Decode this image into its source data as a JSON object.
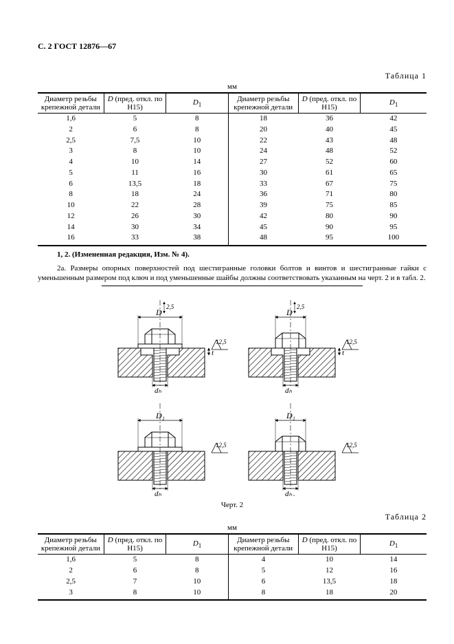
{
  "header": "С. 2 ГОСТ 12876—67",
  "table1": {
    "caption": "Таблица 1",
    "unit": "мм",
    "columns": [
      "Диаметр резьбы крепежной детали",
      "D (пред. откл. по Н15)",
      "D₁",
      "Диаметр резьбы крепежной детали",
      "D (пред. откл. по Н15)",
      "D₁"
    ],
    "rows": [
      [
        "1,6",
        "5",
        "8",
        "18",
        "36",
        "42"
      ],
      [
        "2",
        "6",
        "8",
        "20",
        "40",
        "45"
      ],
      [
        "2,5",
        "7,5",
        "10",
        "22",
        "43",
        "48"
      ],
      [
        "3",
        "8",
        "10",
        "24",
        "48",
        "52"
      ],
      [
        "4",
        "10",
        "14",
        "27",
        "52",
        "60"
      ],
      [
        "5",
        "11",
        "16",
        "30",
        "61",
        "65"
      ],
      [
        "6",
        "13,5",
        "18",
        "33",
        "67",
        "75"
      ],
      [
        "8",
        "18",
        "24",
        "36",
        "71",
        "80"
      ],
      [
        "10",
        "22",
        "28",
        "39",
        "75",
        "85"
      ],
      [
        "12",
        "26",
        "30",
        "42",
        "80",
        "90"
      ],
      [
        "14",
        "30",
        "34",
        "45",
        "90",
        "95"
      ],
      [
        "16",
        "33",
        "38",
        "48",
        "95",
        "100"
      ]
    ]
  },
  "para12": "1, 2. (Измененная редакция, Изм. № 4).",
  "para2a": "2а. Размеры опорных поверхностей под шестигранные головки болтов и винтов и шестигранные гайки с уменьшенным размером под ключ и под уменьшенные шайбы должны соответствовать указанным на черт. 2 и в табл. 2.",
  "figure": {
    "caption": "Черт. 2",
    "labels": {
      "D": "D",
      "D1": "D₁",
      "dh": "dₕ",
      "dh2": "dₕ₂",
      "surf": "12,5",
      "t": "t",
      "tol": "2,5"
    },
    "hatch_color": "#000000",
    "line_color": "#000000",
    "bg": "#ffffff",
    "stroke_width": 1
  },
  "table2": {
    "caption": "Таблица 2",
    "unit": "мм",
    "columns": [
      "Диаметр резьбы крепежной детали",
      "D (пред. откл. по Н15)",
      "D₁",
      "Диаметр резьбы крепежной детали",
      "D (пред. откл. по Н15)",
      "D₁"
    ],
    "rows": [
      [
        "1,6",
        "5",
        "8",
        "4",
        "10",
        "14"
      ],
      [
        "2",
        "6",
        "8",
        "5",
        "12",
        "16"
      ],
      [
        "2,5",
        "7",
        "10",
        "6",
        "13,5",
        "18"
      ],
      [
        "3",
        "8",
        "10",
        "8",
        "18",
        "20"
      ]
    ]
  }
}
